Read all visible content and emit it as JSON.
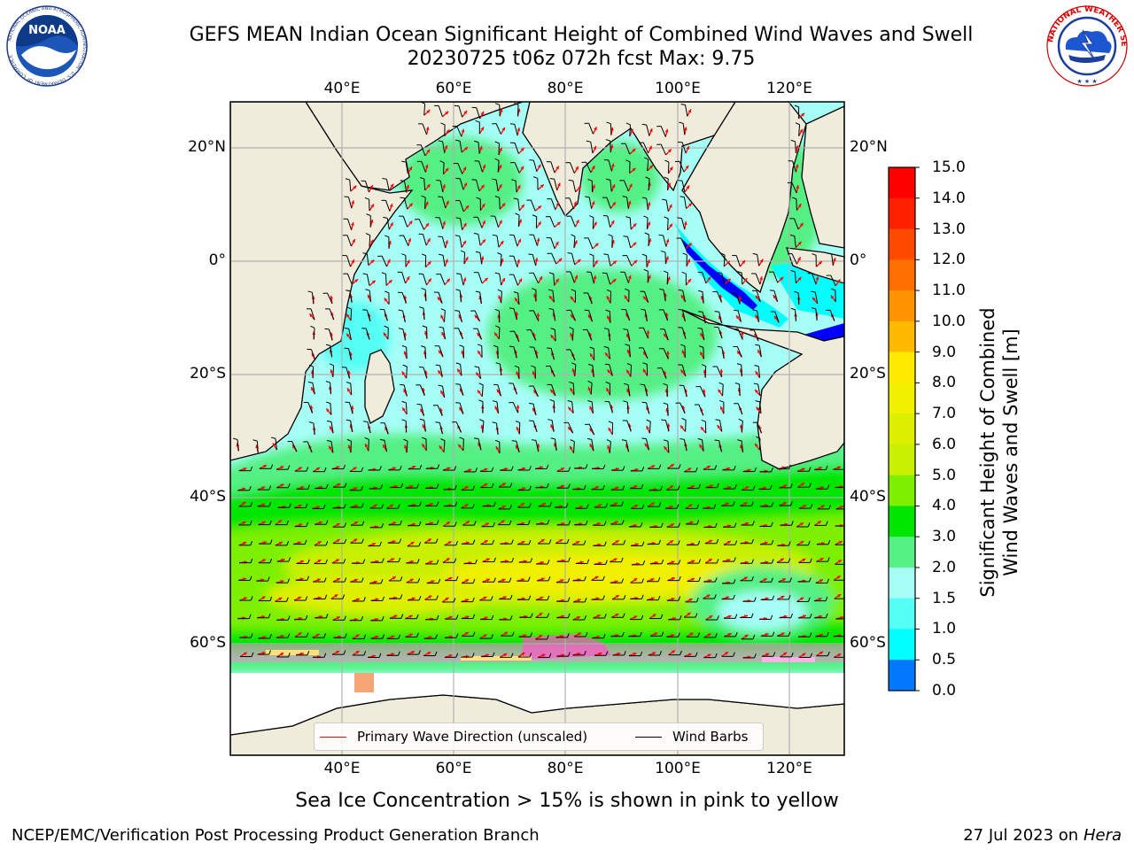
{
  "title": {
    "line1": "GEFS MEAN Indian Ocean Significant Height of Combined Wind Waves and Swell",
    "line2": "20230725 t06z 072h fcst   Max: 9.75"
  },
  "logos": {
    "left": {
      "name": "noaa-logo",
      "text": "NOAA",
      "ring_text": "NATIONAL OCEANIC AND ATMOSPHERIC ADMINISTRATION · U.S. DEPARTMENT OF COMMERCE"
    },
    "right": {
      "name": "nws-logo",
      "ring_text": "NATIONAL WEATHER SERVICE"
    }
  },
  "axes": {
    "lon_ticks": [
      "40°E",
      "60°E",
      "80°E",
      "100°E",
      "120°E"
    ],
    "lat_ticks": [
      "20°N",
      "0°",
      "20°S",
      "40°S",
      "60°S"
    ]
  },
  "colorbar": {
    "label": "Significant Height of Combined Wind Waves and Swell [m]",
    "label_line1": "Significant Height of Combined",
    "label_line2": "Wind Waves and Swell [m]",
    "ticks": [
      "15.0",
      "14.0",
      "13.0",
      "12.0",
      "11.0",
      "10.0",
      "9.0",
      "8.0",
      "7.0",
      "6.0",
      "5.0",
      "4.0",
      "3.0",
      "2.0",
      "1.5",
      "1.0",
      "0.5",
      "0.0"
    ],
    "colors": [
      "#ff0000",
      "#ff2000",
      "#ff4a00",
      "#ff7000",
      "#ff9400",
      "#ffba00",
      "#ffeb00",
      "#f0f000",
      "#dcf000",
      "#c8f000",
      "#7df000",
      "#00e600",
      "#55f084",
      "#a6fff7",
      "#55fff4",
      "#00ffff",
      "#0078ff",
      "#0000ff"
    ]
  },
  "legend": {
    "items": [
      {
        "label": "Primary Wave Direction (unscaled)",
        "color": "#ff0000"
      },
      {
        "label": "Wind Barbs",
        "color": "#000000"
      }
    ]
  },
  "note": "Sea Ice Concentration > 15% is shown in pink to yellow",
  "footer": {
    "left": "NCEP/EMC/Verification Post Processing Product Generation Branch",
    "right_prefix": "27 Jul 2023 on ",
    "right_host": "Hera"
  },
  "map": {
    "colors": {
      "land": "#efecdc",
      "ice_shelf": "#ffffff",
      "sea_ice": "#ff66cc",
      "arrow": "#ff0000",
      "barb": "#000000",
      "grid": "#b0b0b0"
    }
  }
}
